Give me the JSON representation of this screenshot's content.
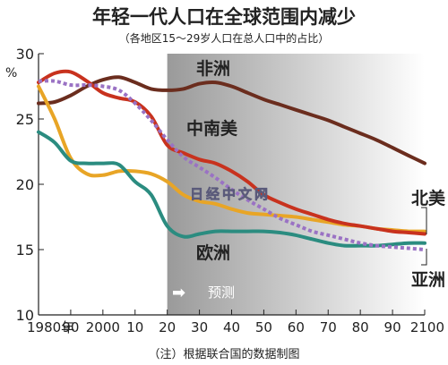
{
  "chart_data": {
    "type": "line",
    "title": "年轻一代人口在全球范围内减少",
    "subtitle": "（各地区15～29岁人口在总人口中的占比）",
    "ylabel": "%",
    "xlabel": "",
    "ylim": [
      10,
      30
    ],
    "xlim": [
      1980,
      2100
    ],
    "y_ticks": [
      10,
      15,
      20,
      25,
      30
    ],
    "x_ticks": [
      {
        "value": 1980,
        "label": "1980年"
      },
      {
        "value": 1990,
        "label": "90"
      },
      {
        "value": 2000,
        "label": "2000"
      },
      {
        "value": 2010,
        "label": "10"
      },
      {
        "value": 2020,
        "label": "20"
      },
      {
        "value": 2030,
        "label": "30"
      },
      {
        "value": 2040,
        "label": "40"
      },
      {
        "value": 2050,
        "label": "50"
      },
      {
        "value": 2060,
        "label": "60"
      },
      {
        "value": 2070,
        "label": "70"
      },
      {
        "value": 2080,
        "label": "80"
      },
      {
        "value": 2090,
        "label": "90"
      },
      {
        "value": 2100,
        "label": "2100"
      }
    ],
    "forecast_start": 2020,
    "forecast_label": "预测",
    "note": "（注）根据联合国的数据制图",
    "watermark": "日经中文网",
    "grid": false,
    "series": [
      {
        "name": "非洲",
        "color": "#6b2d1e",
        "style": "solid",
        "x": [
          1980,
          1985,
          1990,
          1995,
          2000,
          2005,
          2010,
          2015,
          2020,
          2025,
          2030,
          2035,
          2040,
          2045,
          2050,
          2055,
          2060,
          2065,
          2070,
          2075,
          2080,
          2085,
          2090,
          2095,
          2100
        ],
        "y": [
          26.2,
          26.3,
          26.8,
          27.5,
          28.0,
          28.2,
          27.8,
          27.3,
          27.2,
          27.3,
          27.7,
          27.8,
          27.5,
          27.0,
          26.5,
          26.1,
          25.7,
          25.3,
          24.9,
          24.4,
          23.9,
          23.4,
          22.8,
          22.2,
          21.6
        ]
      },
      {
        "name": "中南美",
        "color": "#c8321e",
        "style": "solid",
        "x": [
          1980,
          1985,
          1990,
          1995,
          2000,
          2005,
          2010,
          2015,
          2020,
          2025,
          2030,
          2035,
          2040,
          2045,
          2050,
          2055,
          2060,
          2065,
          2070,
          2075,
          2080,
          2085,
          2090,
          2095,
          2100
        ],
        "y": [
          27.8,
          28.5,
          28.6,
          27.9,
          27.0,
          26.6,
          26.3,
          25.2,
          23.0,
          22.4,
          21.9,
          21.6,
          21.0,
          20.2,
          19.2,
          18.6,
          18.1,
          17.7,
          17.3,
          17.0,
          16.8,
          16.6,
          16.4,
          16.3,
          16.2
        ]
      },
      {
        "name": "北美",
        "color": "#e8a526",
        "style": "solid",
        "x": [
          1980,
          1985,
          1990,
          1995,
          2000,
          2005,
          2010,
          2015,
          2020,
          2025,
          2030,
          2035,
          2040,
          2045,
          2050,
          2055,
          2060,
          2065,
          2070,
          2075,
          2080,
          2085,
          2090,
          2095,
          2100
        ],
        "y": [
          27.5,
          25.0,
          22.0,
          20.8,
          20.7,
          21.0,
          21.0,
          20.8,
          20.2,
          19.2,
          18.7,
          18.5,
          18.1,
          17.8,
          17.7,
          17.6,
          17.5,
          17.3,
          17.1,
          16.9,
          16.8,
          16.6,
          16.5,
          16.4,
          16.4
        ]
      },
      {
        "name": "欧洲",
        "color": "#2b8c80",
        "style": "solid",
        "x": [
          1980,
          1985,
          1990,
          1995,
          2000,
          2005,
          2010,
          2015,
          2020,
          2025,
          2030,
          2035,
          2040,
          2045,
          2050,
          2055,
          2060,
          2065,
          2070,
          2075,
          2080,
          2085,
          2090,
          2095,
          2100
        ],
        "y": [
          24.0,
          23.2,
          21.8,
          21.6,
          21.6,
          21.5,
          20.2,
          19.2,
          16.8,
          16.0,
          16.2,
          16.4,
          16.4,
          16.4,
          16.4,
          16.3,
          16.1,
          15.8,
          15.5,
          15.3,
          15.3,
          15.3,
          15.4,
          15.5,
          15.5
        ]
      },
      {
        "name": "亚洲",
        "color": "#9a72c4",
        "style": "dashed",
        "x": [
          1980,
          1985,
          1990,
          1995,
          2000,
          2005,
          2010,
          2015,
          2020,
          2025,
          2030,
          2035,
          2040,
          2045,
          2050,
          2055,
          2060,
          2065,
          2070,
          2075,
          2080,
          2085,
          2090,
          2095,
          2100
        ],
        "y": [
          27.9,
          27.9,
          27.6,
          27.6,
          27.5,
          27.2,
          26.2,
          24.9,
          23.4,
          22.1,
          21.3,
          20.5,
          19.6,
          18.8,
          18.1,
          17.4,
          16.9,
          16.4,
          16.1,
          15.8,
          15.5,
          15.3,
          15.2,
          15.1,
          15.0
        ]
      }
    ],
    "labels": [
      {
        "series": "非洲",
        "text": "非洲",
        "color": "#222222"
      },
      {
        "series": "中南美",
        "text": "中南美",
        "color": "#222222"
      },
      {
        "series": "北美",
        "text": "北美",
        "color": "#222222"
      },
      {
        "series": "欧洲",
        "text": "欧洲",
        "color": "#222222"
      },
      {
        "series": "亚洲",
        "text": "亚洲",
        "color": "#222222"
      }
    ],
    "colors": {
      "forecast_band_left": "#9a9a9a",
      "forecast_band_right": "#ffffff",
      "axis": "#222222",
      "text": "#222222"
    }
  }
}
